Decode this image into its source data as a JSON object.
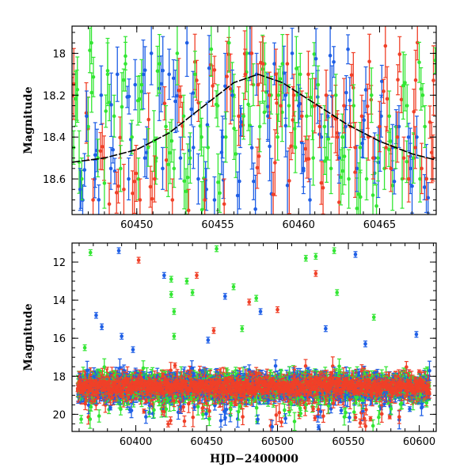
{
  "colors": {
    "green": "#33e633",
    "blue": "#1f5fe6",
    "red": "#f04028",
    "model": "#000000"
  },
  "chart_data": [
    {
      "type": "scatter",
      "panel": "top",
      "title": "",
      "xlabel": "",
      "ylabel": "Magnitude",
      "xlim": [
        60446.0,
        60468.5
      ],
      "ylim": [
        18.77,
        17.87
      ],
      "y_inverted": true,
      "xticks": [
        60450,
        60455,
        60460,
        60465
      ],
      "yticks": [
        18.0,
        18.2,
        18.4,
        18.6
      ],
      "xtick_labels": [
        "60450",
        "60455",
        "60460",
        "60465"
      ],
      "ytick_labels": [
        "18",
        "18.2",
        "18.4",
        "18.6"
      ],
      "model_curve": {
        "description_free": true,
        "x": [
          60446,
          60448,
          60450,
          60452,
          60454,
          60456,
          60457.5,
          60459,
          60461,
          60463,
          60465,
          60467,
          60468.5
        ],
        "y": [
          18.52,
          18.5,
          18.46,
          18.38,
          18.26,
          18.14,
          18.1,
          18.14,
          18.24,
          18.34,
          18.42,
          18.48,
          18.51
        ]
      },
      "series": [
        {
          "color_key": "green",
          "x": [
            60446.1,
            60446.3,
            60446.6,
            60447.0,
            60447.2,
            60447.6,
            60448.0,
            60448.2,
            60448.6,
            60449.0,
            60449.3,
            60449.7,
            60450.1,
            60450.3,
            60450.7,
            60451.2,
            60451.4,
            60451.8,
            60452.3,
            60452.5,
            60452.9,
            60453.3,
            60453.6,
            60454.0,
            60454.4,
            60454.6,
            60455.0,
            60455.5,
            60455.7,
            60456.0,
            60456.6,
            60456.8,
            60457.2,
            60457.6,
            60457.9,
            60458.3,
            60458.7,
            60459.0,
            60459.4,
            60459.8,
            60460.1,
            60460.5,
            60460.9,
            60461.2,
            60461.6,
            60462.0,
            60462.3,
            60462.7,
            60463.1,
            60463.4,
            60463.8,
            60464.2,
            60464.5,
            60464.9,
            60465.3,
            60465.6,
            60466.0,
            60466.4,
            60466.7,
            60467.1,
            60467.5,
            60467.8
          ],
          "y": [
            18.45,
            18.2,
            18.6,
            18.35,
            17.95,
            18.5,
            18.62,
            18.1,
            18.3,
            18.55,
            18.05,
            18.4,
            18.6,
            18.15,
            18.45,
            18.5,
            18.05,
            18.35,
            18.55,
            18.0,
            18.3,
            18.5,
            18.1,
            18.4,
            18.45,
            17.98,
            18.25,
            18.4,
            17.95,
            18.2,
            18.3,
            18.0,
            18.15,
            18.35,
            18.05,
            18.2,
            18.4,
            18.05,
            18.25,
            18.45,
            18.1,
            18.3,
            18.5,
            18.15,
            18.35,
            18.55,
            18.2,
            18.4,
            18.6,
            18.25,
            18.45,
            18.6,
            18.2,
            18.5,
            18.55,
            18.3,
            18.45,
            18.6,
            18.25,
            18.5,
            18.6,
            18.35
          ],
          "err": [
            0.08,
            0.12,
            0.1,
            0.14,
            0.1,
            0.09,
            0.12,
            0.15,
            0.1,
            0.11,
            0.13,
            0.08,
            0.1,
            0.12,
            0.09,
            0.1,
            0.14,
            0.1,
            0.09,
            0.15,
            0.1,
            0.12,
            0.11,
            0.09,
            0.1,
            0.13,
            0.1,
            0.12,
            0.14,
            0.1,
            0.11,
            0.13,
            0.1,
            0.12,
            0.1,
            0.09,
            0.11,
            0.14,
            0.1,
            0.12,
            0.1,
            0.11,
            0.13,
            0.09,
            0.1,
            0.12,
            0.1,
            0.11,
            0.14,
            0.1,
            0.12,
            0.1,
            0.13,
            0.11,
            0.1,
            0.12,
            0.1,
            0.14,
            0.1,
            0.12,
            0.11,
            0.1
          ]
        },
        {
          "color_key": "blue",
          "x": [
            60446.5,
            60446.9,
            60447.4,
            60447.8,
            60448.4,
            60448.8,
            60449.5,
            60449.9,
            60450.5,
            60450.9,
            60451.6,
            60452.0,
            60452.7,
            60453.1,
            60453.5,
            60453.8,
            60454.3,
            60454.8,
            60455.3,
            60455.9,
            60456.4,
            60457.0,
            60457.4,
            60458.1,
            60458.5,
            60459.2,
            60459.6,
            60460.0,
            60460.3,
            60460.7,
            60461.4,
            60461.8,
            60462.5,
            60462.9,
            60463.6,
            60464.0,
            60464.7,
            60465.1,
            60465.8,
            60466.2,
            60466.9,
            60467.3
          ],
          "y": [
            18.65,
            18.3,
            18.6,
            18.2,
            18.55,
            18.1,
            18.6,
            18.15,
            18.5,
            18.0,
            18.55,
            18.1,
            18.5,
            17.95,
            18.45,
            18.6,
            18.65,
            18.7,
            18.4,
            18.2,
            18.35,
            18.0,
            18.1,
            18.3,
            18.05,
            18.2,
            18.0,
            18.25,
            18.55,
            18.7,
            18.4,
            18.3,
            18.5,
            18.35,
            18.55,
            18.4,
            18.5,
            18.3,
            18.45,
            18.35,
            18.55,
            18.4
          ],
          "err": [
            0.1,
            0.12,
            0.09,
            0.14,
            0.1,
            0.13,
            0.1,
            0.12,
            0.09,
            0.15,
            0.1,
            0.12,
            0.1,
            0.16,
            0.1,
            0.12,
            0.1,
            0.11,
            0.1,
            0.12,
            0.1,
            0.13,
            0.1,
            0.12,
            0.1,
            0.11,
            0.12,
            0.1,
            0.12,
            0.1,
            0.11,
            0.1,
            0.12,
            0.1,
            0.11,
            0.1,
            0.12,
            0.1,
            0.11,
            0.1,
            0.12,
            0.1
          ]
        },
        {
          "color_key": "red",
          "x": [
            60447.3,
            60448.3,
            60449.2,
            60450.2,
            60451.1,
            60452.2,
            60453.2,
            60454.2,
            60455.4,
            60456.3,
            60456.7,
            60457.1,
            60457.5,
            60457.8,
            60458.2,
            60458.6,
            60458.9,
            60459.3,
            60459.7,
            60460.2,
            60460.6,
            60461.0,
            60461.3,
            60461.7,
            60462.1,
            60462.4,
            60462.8,
            60463.2,
            60463.5,
            60463.9,
            60464.3,
            60464.6,
            60465.0,
            60465.4,
            60465.7,
            60466.1,
            60466.5,
            60466.8,
            60467.2,
            60467.6,
            60467.9,
            60468.3
          ],
          "y": [
            18.7,
            18.72,
            18.65,
            18.7,
            18.6,
            18.7,
            18.75,
            18.7,
            18.72,
            18.3,
            18.1,
            18.0,
            18.15,
            18.05,
            18.2,
            18.1,
            18.25,
            18.05,
            18.2,
            18.3,
            18.1,
            18.25,
            18.35,
            18.2,
            18.3,
            18.4,
            18.25,
            18.35,
            18.45,
            18.3,
            18.4,
            18.5,
            18.35,
            18.45,
            18.55,
            18.4,
            18.5,
            18.6,
            18.45,
            18.55,
            18.6,
            18.5
          ],
          "err": [
            0.1,
            0.1,
            0.12,
            0.1,
            0.11,
            0.1,
            0.1,
            0.1,
            0.12,
            0.14,
            0.12,
            0.15,
            0.1,
            0.13,
            0.11,
            0.12,
            0.1,
            0.14,
            0.1,
            0.12,
            0.11,
            0.13,
            0.1,
            0.12,
            0.1,
            0.11,
            0.13,
            0.1,
            0.12,
            0.1,
            0.11,
            0.1,
            0.12,
            0.1,
            0.11,
            0.12,
            0.1,
            0.11,
            0.1,
            0.12,
            0.1,
            0.11
          ]
        }
      ]
    },
    {
      "type": "scatter",
      "panel": "bottom",
      "title": "",
      "xlabel": "HJD−2400000",
      "ylabel": "Magnitude",
      "xlim": [
        60355,
        60612
      ],
      "ylim": [
        20.9,
        11.0
      ],
      "y_inverted": true,
      "xticks": [
        60400,
        60450,
        60500,
        60550,
        60600
      ],
      "yticks": [
        12,
        14,
        16,
        18,
        20
      ],
      "xtick_labels": [
        "60400",
        "60450",
        "60500",
        "60550",
        "60600"
      ],
      "ytick_labels": [
        "12",
        "14",
        "16",
        "18",
        "20"
      ],
      "baseline_mag": 18.55,
      "outliers": [
        {
          "color_key": "green",
          "x": 60368,
          "y": 11.5
        },
        {
          "color_key": "blue",
          "x": 60388,
          "y": 11.4
        },
        {
          "color_key": "red",
          "x": 60402,
          "y": 11.9
        },
        {
          "color_key": "blue",
          "x": 60420,
          "y": 12.7
        },
        {
          "color_key": "green",
          "x": 60425,
          "y": 12.9
        },
        {
          "color_key": "green",
          "x": 60425,
          "y": 13.7
        },
        {
          "color_key": "green",
          "x": 60427,
          "y": 14.6
        },
        {
          "color_key": "green",
          "x": 60427,
          "y": 15.9
        },
        {
          "color_key": "green",
          "x": 60436,
          "y": 13.0
        },
        {
          "color_key": "red",
          "x": 60443,
          "y": 12.7
        },
        {
          "color_key": "green",
          "x": 60440,
          "y": 13.6
        },
        {
          "color_key": "green",
          "x": 60457,
          "y": 11.3
        },
        {
          "color_key": "blue",
          "x": 60463,
          "y": 13.8
        },
        {
          "color_key": "green",
          "x": 60469,
          "y": 13.3
        },
        {
          "color_key": "red",
          "x": 60480,
          "y": 14.1
        },
        {
          "color_key": "green",
          "x": 60485,
          "y": 13.9
        },
        {
          "color_key": "blue",
          "x": 60488,
          "y": 14.6
        },
        {
          "color_key": "red",
          "x": 60500,
          "y": 14.5
        },
        {
          "color_key": "green",
          "x": 60520,
          "y": 11.8
        },
        {
          "color_key": "green",
          "x": 60527,
          "y": 11.7
        },
        {
          "color_key": "red",
          "x": 60527,
          "y": 12.6
        },
        {
          "color_key": "green",
          "x": 60540,
          "y": 11.4
        },
        {
          "color_key": "green",
          "x": 60542,
          "y": 13.6
        },
        {
          "color_key": "blue",
          "x": 60534,
          "y": 15.5
        },
        {
          "color_key": "blue",
          "x": 60555,
          "y": 11.6
        },
        {
          "color_key": "blue",
          "x": 60562,
          "y": 16.3
        },
        {
          "color_key": "green",
          "x": 60568,
          "y": 14.9
        },
        {
          "color_key": "blue",
          "x": 60598,
          "y": 15.8
        },
        {
          "color_key": "green",
          "x": 60364,
          "y": 16.5
        },
        {
          "color_key": "blue",
          "x": 60372,
          "y": 14.8
        },
        {
          "color_key": "blue",
          "x": 60376,
          "y": 15.4
        },
        {
          "color_key": "blue",
          "x": 60390,
          "y": 15.9
        },
        {
          "color_key": "blue",
          "x": 60398,
          "y": 16.6
        },
        {
          "color_key": "red",
          "x": 60455,
          "y": 15.6
        },
        {
          "color_key": "blue",
          "x": 60451,
          "y": 16.1
        },
        {
          "color_key": "green",
          "x": 60475,
          "y": 15.5
        }
      ]
    }
  ]
}
